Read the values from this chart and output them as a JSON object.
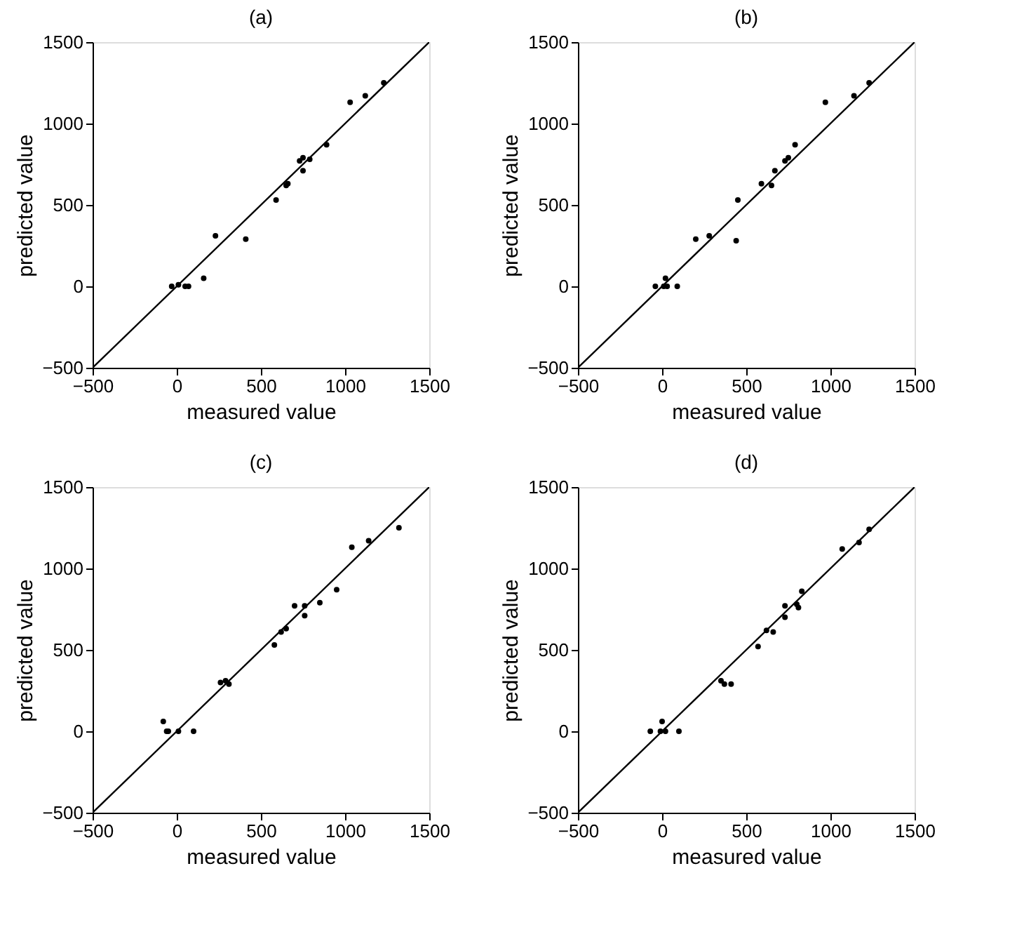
{
  "chart_data": [
    {
      "type": "scatter",
      "title": "(a)",
      "xlabel": "measured value",
      "ylabel": "predicted value",
      "xlim": [
        -500,
        1500
      ],
      "ylim": [
        -500,
        1500
      ],
      "xticks": [
        -500,
        0,
        500,
        1000,
        1500
      ],
      "yticks": [
        -500,
        0,
        500,
        1000,
        1500
      ],
      "grid": false,
      "marker": "circle",
      "series": [
        {
          "color": "#000000",
          "x": [
            -30,
            10,
            50,
            70,
            160,
            230,
            410,
            590,
            650,
            660,
            730,
            750,
            750,
            790,
            890,
            1030,
            1120,
            1230
          ],
          "values": [
            0,
            10,
            0,
            0,
            50,
            310,
            290,
            530,
            620,
            630,
            770,
            790,
            710,
            780,
            870,
            1130,
            1170,
            1250
          ]
        },
        {
          "type": "line",
          "color": "#000000",
          "line_style": "solid",
          "marker": "none",
          "x": [
            -500,
            1500
          ],
          "values": [
            -500,
            1500
          ]
        }
      ]
    },
    {
      "type": "scatter",
      "title": "(b)",
      "xlabel": "measured value",
      "ylabel": "predicted value",
      "xlim": [
        -500,
        1500
      ],
      "ylim": [
        -500,
        1500
      ],
      "xticks": [
        -500,
        0,
        500,
        1000,
        1500
      ],
      "yticks": [
        -500,
        0,
        500,
        1000,
        1500
      ],
      "grid": false,
      "marker": "circle",
      "series": [
        {
          "color": "#000000",
          "x": [
            -40,
            10,
            20,
            30,
            90,
            200,
            280,
            440,
            450,
            590,
            650,
            670,
            730,
            750,
            790,
            970,
            1140,
            1230
          ],
          "values": [
            0,
            0,
            50,
            0,
            0,
            290,
            310,
            280,
            530,
            630,
            620,
            710,
            770,
            790,
            870,
            1130,
            1170,
            1250
          ]
        },
        {
          "type": "line",
          "color": "#000000",
          "line_style": "solid",
          "marker": "none",
          "x": [
            -500,
            1500
          ],
          "values": [
            -500,
            1500
          ]
        }
      ]
    },
    {
      "type": "scatter",
      "title": "(c)",
      "xlabel": "measured value",
      "ylabel": "predicted value",
      "xlim": [
        -500,
        1500
      ],
      "ylim": [
        -500,
        1500
      ],
      "xticks": [
        -500,
        0,
        500,
        1000,
        1500
      ],
      "yticks": [
        -500,
        0,
        500,
        1000,
        1500
      ],
      "grid": false,
      "marker": "circle",
      "series": [
        {
          "color": "#000000",
          "x": [
            -80,
            -60,
            -50,
            10,
            100,
            260,
            290,
            310,
            580,
            620,
            650,
            700,
            760,
            760,
            850,
            950,
            1040,
            1140,
            1320
          ],
          "values": [
            60,
            0,
            0,
            0,
            0,
            300,
            310,
            290,
            530,
            610,
            630,
            770,
            770,
            710,
            790,
            870,
            1130,
            1170,
            1250
          ]
        },
        {
          "type": "line",
          "color": "#000000",
          "line_style": "solid",
          "marker": "none",
          "x": [
            -500,
            1500
          ],
          "values": [
            -500,
            1500
          ]
        }
      ]
    },
    {
      "type": "scatter",
      "title": "(d)",
      "xlabel": "measured value",
      "ylabel": "predicted value",
      "xlim": [
        -500,
        1500
      ],
      "ylim": [
        -500,
        1500
      ],
      "xticks": [
        -500,
        0,
        500,
        1000,
        1500
      ],
      "yticks": [
        -500,
        0,
        500,
        1000,
        1500
      ],
      "grid": false,
      "marker": "circle",
      "series": [
        {
          "color": "#000000",
          "x": [
            -70,
            -10,
            0,
            20,
            100,
            350,
            370,
            410,
            570,
            620,
            660,
            730,
            730,
            800,
            810,
            830,
            1070,
            1170,
            1230
          ],
          "values": [
            0,
            0,
            60,
            0,
            0,
            310,
            290,
            290,
            520,
            620,
            610,
            770,
            700,
            780,
            760,
            860,
            1120,
            1160,
            1240
          ]
        },
        {
          "type": "line",
          "color": "#000000",
          "line_style": "solid",
          "marker": "none",
          "x": [
            -500,
            1500
          ],
          "values": [
            -500,
            1500
          ]
        }
      ]
    }
  ]
}
